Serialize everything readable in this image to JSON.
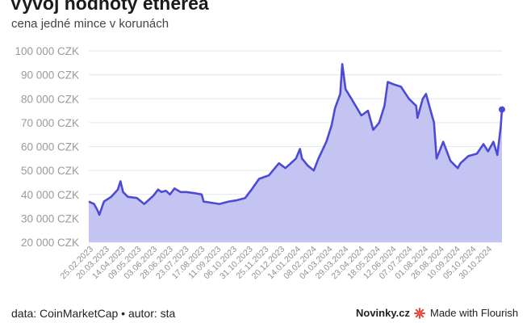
{
  "header": {
    "title": "Vývoj hodnoty etherea",
    "subtitle": "cena jedné mince v korunách"
  },
  "footer": {
    "source": "data: CoinMarketCap • autor: sta",
    "brand": "Novinky.cz",
    "made_with": "Made with Flourish"
  },
  "colors": {
    "line": "#4b4bd6",
    "area": "#c4c4f2",
    "grid": "#e6e6e6",
    "flourish_accent": "#e8473b"
  },
  "chart_data": {
    "type": "area",
    "title": "Vývoj hodnoty etherea",
    "subtitle": "cena jedné mince v korunách",
    "xlabel": "",
    "ylabel": "",
    "ylim": [
      20000,
      100000
    ],
    "grid": true,
    "y_tick_values": [
      20000,
      30000,
      40000,
      50000,
      60000,
      70000,
      80000,
      90000,
      100000
    ],
    "y_tick_labels": [
      "20 000 CZK",
      "30 000 CZK",
      "40 000 CZK",
      "50 000 CZK",
      "60 000 CZK",
      "70 000 CZK",
      "80 000 CZK",
      "90 000 CZK",
      "100 000 CZK"
    ],
    "x_tick_labels": [
      "25.02.2023",
      "20.03.2023",
      "14.04.2023",
      "09.05.2023",
      "03.06.2023",
      "28.06.2023",
      "23.07.2023",
      "17.08.2023",
      "11.09.2023",
      "06.10.2023",
      "31.10.2023",
      "25.11.2023",
      "20.12.2023",
      "14.01.2024",
      "08.02.2024",
      "04.03.2024",
      "29.03.2024",
      "23.04.2024",
      "18.05.2024",
      "12.06.2024",
      "07.07.2024",
      "01.08.2024",
      "26.08.2024",
      "10.09.2024",
      "05.10.2024",
      "30.10.2024"
    ],
    "series": [
      {
        "x": [
          "2023-02-25",
          "2023-03-05",
          "2023-03-10",
          "2023-03-13",
          "2023-03-20",
          "2023-03-31",
          "2023-04-10",
          "2023-04-14",
          "2023-04-18",
          "2023-04-25",
          "2023-05-09",
          "2023-05-20",
          "2023-06-03",
          "2023-06-10",
          "2023-06-15",
          "2023-06-22",
          "2023-06-28",
          "2023-07-05",
          "2023-07-14",
          "2023-07-23",
          "2023-08-05",
          "2023-08-15",
          "2023-08-18",
          "2023-08-30",
          "2023-09-11",
          "2023-09-25",
          "2023-10-06",
          "2023-10-20",
          "2023-10-31",
          "2023-11-10",
          "2023-11-25",
          "2023-12-10",
          "2023-12-20",
          "2024-01-05",
          "2024-01-11",
          "2024-01-14",
          "2024-01-23",
          "2024-02-01",
          "2024-02-08",
          "2024-02-20",
          "2024-02-28",
          "2024-03-04",
          "2024-03-12",
          "2024-03-15",
          "2024-03-20",
          "2024-03-29",
          "2024-04-13",
          "2024-04-23",
          "2024-05-01",
          "2024-05-10",
          "2024-05-18",
          "2024-05-23",
          "2024-06-01",
          "2024-06-12",
          "2024-06-24",
          "2024-07-05",
          "2024-07-07",
          "2024-07-15",
          "2024-07-20",
          "2024-07-26",
          "2024-08-01",
          "2024-08-05",
          "2024-08-15",
          "2024-08-26",
          "2024-09-06",
          "2024-09-10",
          "2024-09-22",
          "2024-10-05",
          "2024-10-15",
          "2024-10-22",
          "2024-10-30",
          "2024-11-05",
          "2024-11-10",
          "2024-11-12"
        ],
        "values": [
          37000,
          36000,
          33500,
          31500,
          37000,
          39000,
          42000,
          45500,
          41000,
          39000,
          38500,
          36000,
          39500,
          42000,
          41000,
          41500,
          40000,
          42500,
          41000,
          41000,
          40500,
          40000,
          37000,
          36500,
          36000,
          37000,
          37500,
          38500,
          42500,
          46500,
          48000,
          53000,
          51000,
          55000,
          59000,
          55000,
          52000,
          50000,
          55000,
          62000,
          69000,
          76000,
          82000,
          94500,
          84000,
          80000,
          73000,
          75000,
          67000,
          70000,
          77000,
          87000,
          86000,
          85000,
          80000,
          77000,
          72000,
          80000,
          82000,
          76000,
          70000,
          55000,
          62000,
          54000,
          51000,
          53000,
          56000,
          57000,
          61000,
          58000,
          62000,
          56500,
          68000,
          75500
        ]
      }
    ]
  }
}
